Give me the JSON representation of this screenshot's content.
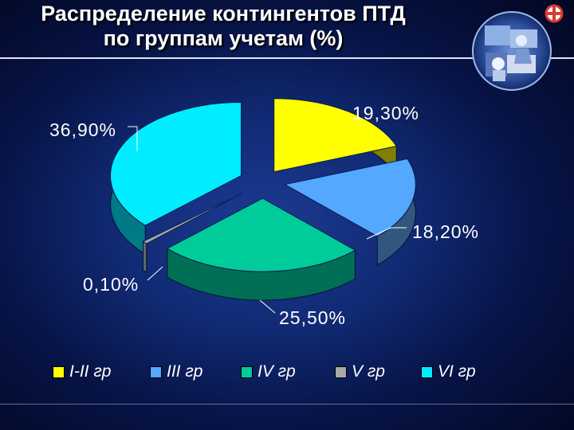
{
  "slide": {
    "title_line1": "Распределение контингентов ПТД",
    "title_line2": "по группам учетам (%)"
  },
  "chart_data": {
    "type": "pie",
    "title": "Распределение контингентов ПТД по группам учетам (%)",
    "categories": [
      "I-II гр",
      "III гр",
      "IV гр",
      "V гр",
      "VI гр"
    ],
    "values": [
      19.3,
      18.2,
      25.5,
      0.1,
      36.9
    ],
    "labels": [
      "19,30%",
      "18,20%",
      "25,50%",
      "0,10%",
      "36,90%"
    ],
    "colors": [
      "#ffff00",
      "#55a8ff",
      "#00cc99",
      "#a8a8a8",
      "#00ecff"
    ],
    "legend_position": "bottom",
    "grid": false,
    "style": "exploded-3d"
  },
  "colors": {
    "background": "#0a1b5c",
    "title_text": "#ffffff",
    "label_text": "#ffffff",
    "rule": "#dfe5f4"
  },
  "icons": {
    "corner_art": "circular-clinic-photo",
    "logo": "medical-emblem-icon"
  }
}
